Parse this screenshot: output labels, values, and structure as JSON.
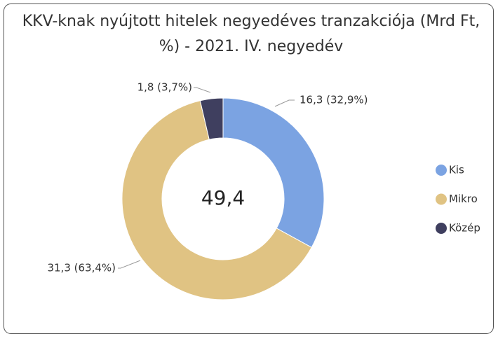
{
  "chart_data": {
    "type": "donut",
    "title": "KKV-knak nyújtott hitelek negyedéves tranzakciója (Mrd Ft, %) - 2021. IV. negyedév",
    "categories": [
      "Kis",
      "Mikro",
      "Közép"
    ],
    "values": [
      16.3,
      31.3,
      1.8
    ],
    "value_labels": [
      "16,3 (32,9%)",
      "31,3 (63,4%)",
      "1,8 (3,7%)"
    ],
    "colors": [
      "#7ba3e2",
      "#e0c383",
      "#3f3f5f"
    ],
    "center_label": "49,4",
    "legend": "right"
  }
}
